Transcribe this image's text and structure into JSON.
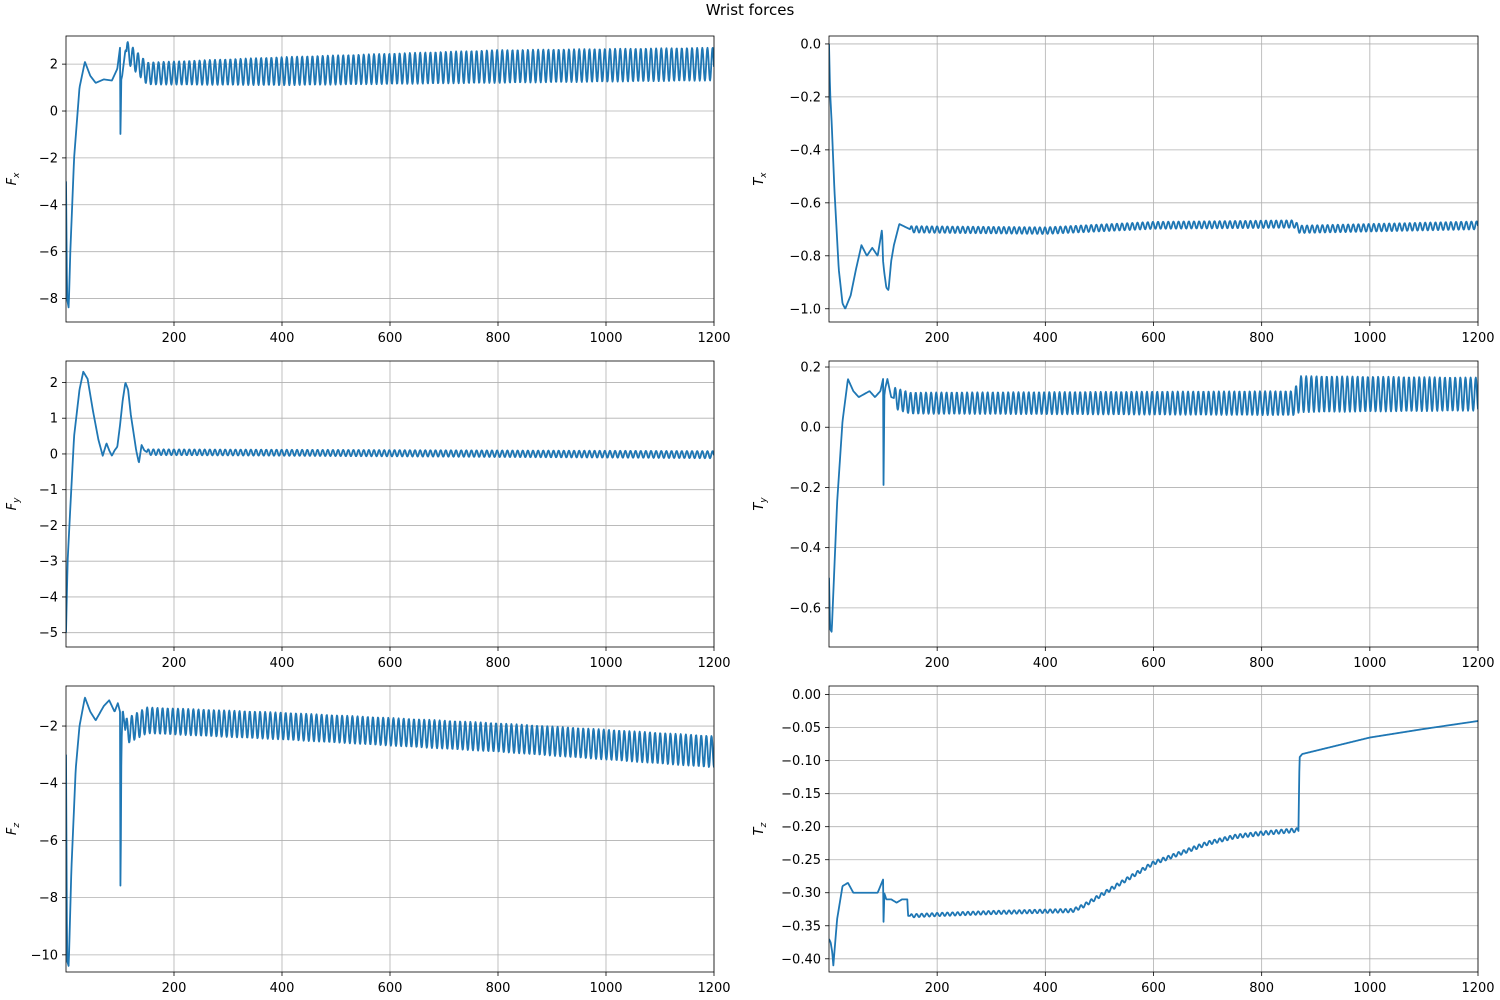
{
  "figure": {
    "title": "Wrist forces",
    "line_color": "#1f77b4",
    "grid_color": "#b0b0b0"
  },
  "chart_data": [
    {
      "type": "line",
      "ylabel": "F",
      "ylabel_sub": "x",
      "xlim": [
        0,
        1200
      ],
      "ylim": [
        -9,
        3.2
      ],
      "grid": true,
      "xticks": [
        200,
        400,
        600,
        800,
        1000,
        1200
      ],
      "yticks": [
        -8,
        -6,
        -4,
        -2,
        0,
        2
      ],
      "ytick_labels": [
        "−8",
        "−6",
        "−4",
        "−2",
        "0",
        "2"
      ],
      "x": [
        0,
        2,
        5,
        8,
        15,
        25,
        35,
        45,
        55,
        70,
        85,
        95,
        100,
        101,
        102,
        104,
        110,
        150,
        400,
        800,
        1200
      ],
      "y": [
        -3,
        -8,
        -8.4,
        -6,
        -2,
        1,
        2.1,
        1.5,
        1.2,
        1.35,
        1.3,
        1.8,
        2.7,
        -1.9,
        1.3,
        1.5,
        2.6,
        1.6,
        1.7,
        1.9,
        2.0
      ],
      "osc": {
        "x_start": 112,
        "x_end": 1200,
        "period": 9.5,
        "amp": [
          [
            112,
            0.45
          ],
          [
            400,
            0.6
          ],
          [
            800,
            0.7
          ],
          [
            1200,
            0.7
          ]
        ]
      }
    },
    {
      "type": "line",
      "ylabel": "T",
      "ylabel_sub": "x",
      "xlim": [
        0,
        1200
      ],
      "ylim": [
        -1.05,
        0.03
      ],
      "grid": true,
      "xticks": [
        200,
        400,
        600,
        800,
        1000,
        1200
      ],
      "yticks": [
        -1.0,
        -0.8,
        -0.6,
        -0.4,
        -0.2,
        0.0
      ],
      "ytick_labels": [
        "−1.0",
        "−0.8",
        "−0.6",
        "−0.4",
        "−0.2",
        "0.0"
      ],
      "x": [
        0,
        2,
        5,
        10,
        18,
        25,
        30,
        40,
        50,
        60,
        70,
        80,
        90,
        98,
        100,
        102,
        106,
        110,
        115,
        120,
        130,
        140,
        150,
        400,
        600,
        860,
        870,
        1200
      ],
      "y": [
        0.0,
        -0.18,
        -0.3,
        -0.55,
        -0.85,
        -0.98,
        -1.0,
        -0.95,
        -0.85,
        -0.76,
        -0.8,
        -0.77,
        -0.8,
        -0.7,
        -0.82,
        -0.86,
        -0.92,
        -0.93,
        -0.82,
        -0.76,
        -0.68,
        -0.69,
        -0.7,
        -0.705,
        -0.685,
        -0.68,
        -0.7,
        -0.685
      ],
      "osc": {
        "x_start": 150,
        "x_end": 1200,
        "period": 9.5,
        "amp": [
          [
            150,
            0.012
          ],
          [
            1200,
            0.015
          ]
        ]
      }
    },
    {
      "type": "line",
      "ylabel": "F",
      "ylabel_sub": "y",
      "xlim": [
        0,
        1200
      ],
      "ylim": [
        -5.4,
        2.6
      ],
      "grid": true,
      "xticks": [
        200,
        400,
        600,
        800,
        1000,
        1200
      ],
      "yticks": [
        -5,
        -4,
        -3,
        -2,
        -1,
        0,
        1,
        2
      ],
      "ytick_labels": [
        "−5",
        "−4",
        "−3",
        "−2",
        "−1",
        "0",
        "1",
        "2"
      ],
      "x": [
        0,
        3,
        8,
        15,
        25,
        32,
        40,
        50,
        60,
        68,
        75,
        80,
        85,
        90,
        95,
        100,
        105,
        110,
        115,
        120,
        130,
        135,
        140,
        145,
        150,
        1200
      ],
      "y": [
        -5.0,
        -3.0,
        -1.5,
        0.5,
        1.8,
        2.3,
        2.1,
        1.2,
        0.4,
        -0.05,
        0.3,
        0.1,
        -0.05,
        0.1,
        0.2,
        0.8,
        1.5,
        2.0,
        1.8,
        1.1,
        0.1,
        -0.25,
        0.25,
        0.1,
        0.05,
        -0.02
      ],
      "osc": {
        "x_start": 150,
        "x_end": 1200,
        "period": 9.5,
        "amp": [
          [
            150,
            0.08
          ],
          [
            1200,
            0.1
          ]
        ]
      }
    },
    {
      "type": "line",
      "ylabel": "T",
      "ylabel_sub": "y",
      "xlim": [
        0,
        1200
      ],
      "ylim": [
        -0.73,
        0.22
      ],
      "grid": true,
      "xticks": [
        200,
        400,
        600,
        800,
        1000,
        1200
      ],
      "yticks": [
        -0.6,
        -0.4,
        -0.2,
        0.0,
        0.2
      ],
      "ytick_labels": [
        "−0.6",
        "−0.4",
        "−0.2",
        "0.0",
        "0.2"
      ],
      "x": [
        0,
        2,
        5,
        8,
        15,
        25,
        35,
        45,
        55,
        65,
        75,
        85,
        95,
        100,
        101,
        102,
        104,
        108,
        115,
        150,
        860,
        870,
        1200
      ],
      "y": [
        -0.5,
        -0.67,
        -0.68,
        -0.55,
        -0.25,
        0.02,
        0.16,
        0.12,
        0.1,
        0.11,
        0.12,
        0.1,
        0.12,
        0.16,
        -0.28,
        0.1,
        0.13,
        0.16,
        0.1,
        0.08,
        0.08,
        0.11,
        0.11
      ],
      "osc": {
        "x_start": 120,
        "x_end": 1200,
        "period": 9.5,
        "amp": [
          [
            120,
            0.035
          ],
          [
            860,
            0.04
          ],
          [
            870,
            0.06
          ],
          [
            1200,
            0.055
          ]
        ]
      }
    },
    {
      "type": "line",
      "ylabel": "F",
      "ylabel_sub": "z",
      "xlim": [
        0,
        1200
      ],
      "ylim": [
        -10.6,
        -0.6
      ],
      "grid": true,
      "xticks": [
        200,
        400,
        600,
        800,
        1000,
        1200
      ],
      "yticks": [
        -10,
        -8,
        -6,
        -4,
        -2
      ],
      "ytick_labels": [
        "−10",
        "−8",
        "−6",
        "−4",
        "−2"
      ],
      "x": [
        0,
        2,
        5,
        10,
        18,
        25,
        35,
        45,
        55,
        70,
        80,
        90,
        96,
        100,
        101,
        102,
        103,
        105,
        110,
        150,
        400,
        800,
        1200
      ],
      "y": [
        -3,
        -10.2,
        -10.4,
        -7,
        -3.5,
        -2,
        -1,
        -1.5,
        -1.8,
        -1.3,
        -1.1,
        -1.5,
        -1.2,
        -1.5,
        -9.1,
        -4,
        -2.5,
        -1.4,
        -2.2,
        -1.8,
        -2.0,
        -2.4,
        -2.9
      ],
      "osc": {
        "x_start": 110,
        "x_end": 1200,
        "period": 9.5,
        "amp": [
          [
            110,
            0.45
          ],
          [
            800,
            0.5
          ],
          [
            1200,
            0.55
          ]
        ]
      }
    },
    {
      "type": "line",
      "ylabel": "T",
      "ylabel_sub": "z",
      "xlim": [
        0,
        1200
      ],
      "ylim": [
        -0.42,
        0.013
      ],
      "grid": true,
      "xticks": [
        200,
        400,
        600,
        800,
        1000,
        1200
      ],
      "yticks": [
        -0.4,
        -0.35,
        -0.3,
        -0.25,
        -0.2,
        -0.15,
        -0.1,
        -0.05,
        0.0
      ],
      "ytick_labels": [
        "−0.40",
        "−0.35",
        "−0.30",
        "−0.25",
        "−0.20",
        "−0.15",
        "−0.10",
        "−0.05",
        "0.00"
      ],
      "x": [
        0,
        3,
        6,
        8,
        10,
        15,
        25,
        35,
        45,
        60,
        75,
        90,
        100,
        101,
        102,
        106,
        115,
        125,
        135,
        145,
        146,
        150,
        200,
        300,
        450,
        470,
        500,
        550,
        600,
        650,
        700,
        750,
        800,
        868,
        869,
        870,
        875,
        900,
        950,
        1000,
        1100,
        1200
      ],
      "y": [
        -0.37,
        -0.375,
        -0.39,
        -0.41,
        -0.39,
        -0.34,
        -0.29,
        -0.285,
        -0.3,
        -0.3,
        -0.3,
        -0.3,
        -0.28,
        -0.36,
        -0.3,
        -0.31,
        -0.31,
        -0.315,
        -0.31,
        -0.31,
        -0.335,
        -0.335,
        -0.333,
        -0.33,
        -0.327,
        -0.32,
        -0.305,
        -0.28,
        -0.255,
        -0.24,
        -0.225,
        -0.215,
        -0.21,
        -0.205,
        -0.15,
        -0.095,
        -0.09,
        -0.085,
        -0.075,
        -0.065,
        -0.052,
        -0.04
      ],
      "osc": {
        "x_start": 150,
        "x_end": 868,
        "period": 9.5,
        "amp": [
          [
            150,
            0.0025
          ],
          [
            868,
            0.003
          ]
        ]
      }
    }
  ]
}
